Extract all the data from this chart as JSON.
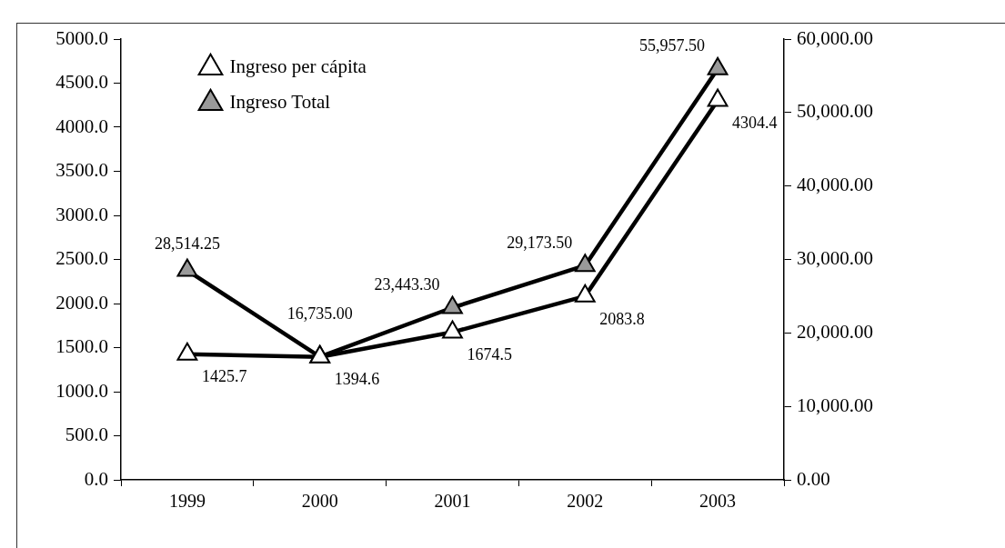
{
  "chart_data": {
    "type": "line",
    "categories": [
      "1999",
      "2000",
      "2001",
      "2002",
      "2003"
    ],
    "series": [
      {
        "name": "Ingreso per cápita",
        "color": "#000000",
        "values": [
          1425.7,
          1394.6,
          1674.5,
          2083.8,
          4304.4
        ],
        "value_labels": [
          "1425.7",
          "1394.6",
          "1674.5",
          "2083.8",
          "4304.4"
        ]
      },
      {
        "name": "Ingreso Total",
        "color": "#000000",
        "axis": "y2",
        "values": [
          28514.25,
          16735.0,
          23443.3,
          29173.5,
          55957.5
        ],
        "value_labels": [
          "28,514.25",
          "16,735.00",
          "23,443.30",
          "29,173.50",
          "55,957.50"
        ]
      }
    ],
    "ylim": [
      0,
      5000
    ],
    "yticks": [
      {
        "value": 0,
        "label": "0.0"
      },
      {
        "value": 500,
        "label": "500.0"
      },
      {
        "value": 1000,
        "label": "1000.0"
      },
      {
        "value": 1500,
        "label": "1500.0"
      },
      {
        "value": 2000,
        "label": "2000.0"
      },
      {
        "value": 2500,
        "label": "2500.0"
      },
      {
        "value": 3000,
        "label": "3000.0"
      },
      {
        "value": 3500,
        "label": "3500.0"
      },
      {
        "value": 4000,
        "label": "4000.0"
      },
      {
        "value": 4500,
        "label": "4500.0"
      },
      {
        "value": 5000,
        "label": "5000.0"
      }
    ],
    "y2lim": [
      0,
      60000
    ],
    "y2ticks": [
      {
        "value": 0,
        "label": "0.00"
      },
      {
        "value": 10000,
        "label": "10,000.00"
      },
      {
        "value": 20000,
        "label": "20,000.00"
      },
      {
        "value": 30000,
        "label": "30,000.00"
      },
      {
        "value": 40000,
        "label": "40,000.00"
      },
      {
        "value": 50000,
        "label": "50,000.00"
      },
      {
        "value": 60000,
        "label": "60,000.00"
      }
    ],
    "legend": "top left",
    "marker": "triangle",
    "line_style": "solid"
  }
}
